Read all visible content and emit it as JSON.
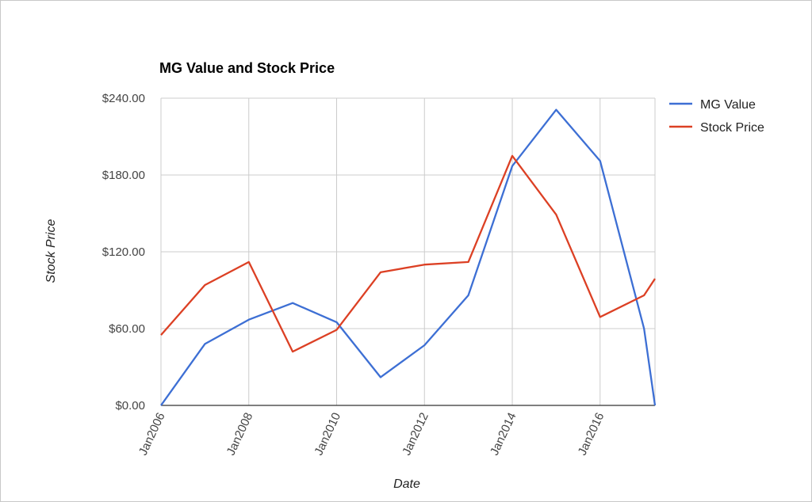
{
  "chart_data": {
    "type": "line",
    "title": "MG Value and Stock Price",
    "xlabel": "Date",
    "ylabel": "Stock Price",
    "x_domain": [
      "2006-01",
      "2017-04"
    ],
    "x_ticks": [
      "Jan2006",
      "Jan2008",
      "Jan2010",
      "Jan2012",
      "Jan2014",
      "Jan2016"
    ],
    "y_ticks": [
      "$0.00",
      "$60.00",
      "$120.00",
      "$180.00",
      "$240.00"
    ],
    "ylim": [
      0,
      240
    ],
    "grid": true,
    "legend_position": "right",
    "series": [
      {
        "name": "MG Value",
        "color": "#3d6fd4",
        "x": [
          "2006-01",
          "2007-01",
          "2008-01",
          "2009-01",
          "2010-01",
          "2011-01",
          "2012-01",
          "2013-01",
          "2014-01",
          "2015-01",
          "2016-01",
          "2017-01",
          "2017-04"
        ],
        "values": [
          0,
          48,
          67,
          80,
          65,
          22,
          47,
          86,
          187,
          231,
          191,
          60,
          0
        ]
      },
      {
        "name": "Stock Price",
        "color": "#dc4024",
        "x": [
          "2006-01",
          "2007-01",
          "2008-01",
          "2009-01",
          "2010-01",
          "2011-01",
          "2012-01",
          "2013-01",
          "2014-01",
          "2015-01",
          "2016-01",
          "2017-01",
          "2017-04"
        ],
        "values": [
          55,
          94,
          112,
          42,
          59,
          104,
          110,
          112,
          195,
          149,
          69,
          86,
          99
        ]
      }
    ]
  }
}
